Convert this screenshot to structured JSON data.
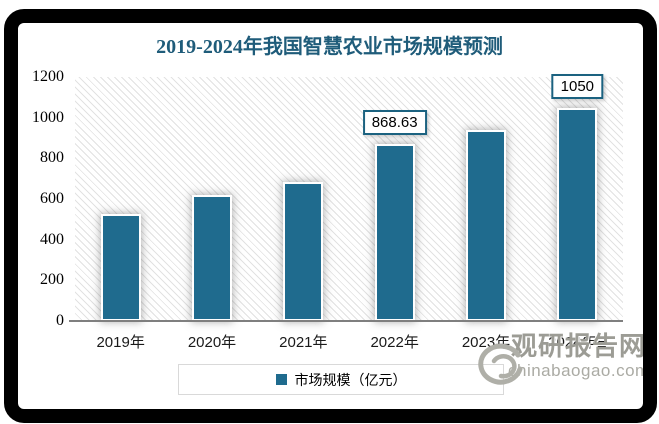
{
  "title": "2019-2024年我国智慧农业市场规模预测",
  "chart_data": {
    "type": "bar",
    "title": "2019-2024年我国智慧农业市场规模预测",
    "categories": [
      "2019年",
      "2020年",
      "2021年",
      "2022年",
      "2023年",
      "2024年E"
    ],
    "series": [
      {
        "name": "市场规模（亿元）",
        "values": [
          525,
          620,
          685,
          868.63,
          940,
          1050
        ]
      }
    ],
    "values": [
      525,
      620,
      685,
      868.63,
      940,
      1050
    ],
    "annotations": [
      {
        "category": "2022年",
        "text": "868.63"
      },
      {
        "category": "2024年E",
        "text": "1050"
      }
    ],
    "xlabel": "",
    "ylabel": "",
    "ylim": [
      0,
      1200
    ],
    "yticks": [
      0,
      200,
      400,
      600,
      800,
      1000,
      1200
    ],
    "grid": false,
    "legend_position": "bottom",
    "legend": [
      "市场规模（亿元）"
    ],
    "bar_color": "#1F6B8E"
  },
  "legend": {
    "label": "市场规模（亿元）"
  },
  "watermark": {
    "name": "观研报告网",
    "domain": "chinabaogao.com"
  },
  "colors": {
    "bar": "#1F6B8E",
    "title": "#1F5C7A",
    "annotation_border": "#1B6280",
    "axis_line": "#7F7F7F",
    "legend_border": "#D9D9D9",
    "watermark_text": "#9C9C95",
    "watermark_domain": "#ABABA4",
    "frame": "#000000"
  }
}
